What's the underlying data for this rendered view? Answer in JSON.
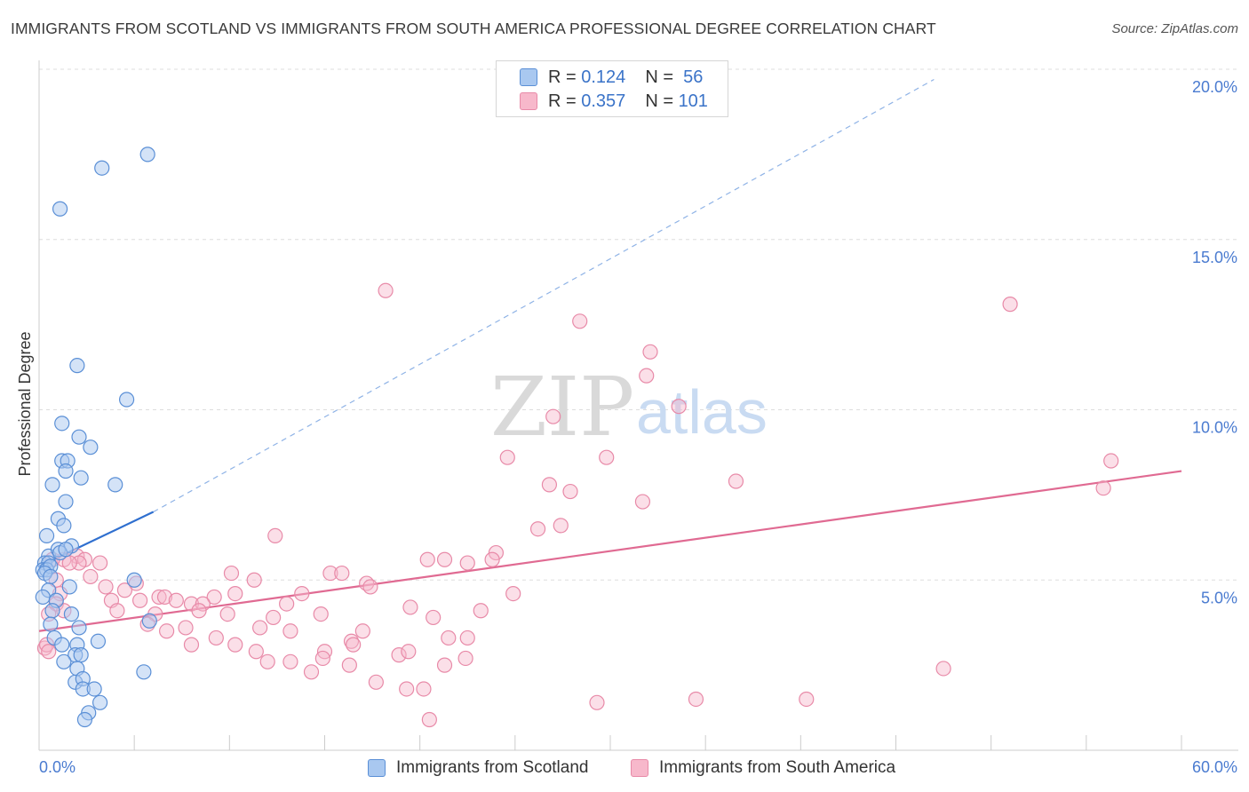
{
  "title": "IMMIGRANTS FROM SCOTLAND VS IMMIGRANTS FROM SOUTH AMERICA PROFESSIONAL DEGREE CORRELATION CHART",
  "source": "Source: ZipAtlas.com",
  "watermark": {
    "zip": "ZIP",
    "atlas": "atlas"
  },
  "legend": {
    "r_label": "R =",
    "n_label": "N =",
    "rows": [
      {
        "r": "0.124",
        "n": "56"
      },
      {
        "r": "0.357",
        "n": "101"
      }
    ]
  },
  "bottom_legend": [
    "Immigrants from Scotland",
    "Immigrants from South America"
  ],
  "colors": {
    "scotland_fill": "#a9c8f0",
    "scotland_stroke": "#5a8fd6",
    "scotland_line": "#2f6fcf",
    "southam_fill": "#f7b8cb",
    "southam_stroke": "#e88aa8",
    "southam_line": "#e06a92",
    "tick_text": "#4a7bd0",
    "grid": "#dddddd"
  },
  "chart_data": {
    "type": "scatter",
    "title": "IMMIGRANTS FROM SCOTLAND VS IMMIGRANTS FROM SOUTH AMERICA PROFESSIONAL DEGREE CORRELATION CHART",
    "xlabel": "",
    "ylabel": "Professional Degree",
    "xlim": [
      0,
      60
    ],
    "ylim": [
      0,
      20
    ],
    "x_tick_labels": [
      "0.0%",
      "60.0%"
    ],
    "y_ticks": [
      5,
      10,
      15,
      20
    ],
    "y_tick_labels": [
      "5.0%",
      "10.0%",
      "15.0%",
      "20.0%"
    ],
    "grid": "horizontal dashed",
    "legend_placement": "top-center",
    "series": [
      {
        "name": "Immigrants from Scotland",
        "r": 0.124,
        "n": 56,
        "trend": {
          "x0": 0.0,
          "y0": 5.4,
          "x1": 6.0,
          "y1": 7.0,
          "dashed_to_x": 47.0,
          "dashed_to_y": 19.7
        },
        "points": [
          [
            3.3,
            17.1
          ],
          [
            5.7,
            17.5
          ],
          [
            1.1,
            15.9
          ],
          [
            2.0,
            11.3
          ],
          [
            4.6,
            10.3
          ],
          [
            1.2,
            9.6
          ],
          [
            2.1,
            9.2
          ],
          [
            2.7,
            8.9
          ],
          [
            1.2,
            8.5
          ],
          [
            1.5,
            8.5
          ],
          [
            2.2,
            8.0
          ],
          [
            0.7,
            7.8
          ],
          [
            4.0,
            7.8
          ],
          [
            1.4,
            8.2
          ],
          [
            1.4,
            7.3
          ],
          [
            1.0,
            6.8
          ],
          [
            1.3,
            6.6
          ],
          [
            0.4,
            6.3
          ],
          [
            1.7,
            6.0
          ],
          [
            0.5,
            5.7
          ],
          [
            1.0,
            5.9
          ],
          [
            1.1,
            5.8
          ],
          [
            1.4,
            5.9
          ],
          [
            0.3,
            5.5
          ],
          [
            0.5,
            5.5
          ],
          [
            0.2,
            5.3
          ],
          [
            0.4,
            5.3
          ],
          [
            0.6,
            5.4
          ],
          [
            0.3,
            5.2
          ],
          [
            0.6,
            5.1
          ],
          [
            5.0,
            5.0
          ],
          [
            1.6,
            4.8
          ],
          [
            0.5,
            4.7
          ],
          [
            0.2,
            4.5
          ],
          [
            0.9,
            4.4
          ],
          [
            0.7,
            4.1
          ],
          [
            1.7,
            4.0
          ],
          [
            0.6,
            3.7
          ],
          [
            2.1,
            3.6
          ],
          [
            5.8,
            3.8
          ],
          [
            0.8,
            3.3
          ],
          [
            1.2,
            3.1
          ],
          [
            2.0,
            3.1
          ],
          [
            3.1,
            3.2
          ],
          [
            1.9,
            2.8
          ],
          [
            2.2,
            2.8
          ],
          [
            1.3,
            2.6
          ],
          [
            2.0,
            2.4
          ],
          [
            1.9,
            2.0
          ],
          [
            2.3,
            2.1
          ],
          [
            2.3,
            1.8
          ],
          [
            2.9,
            1.8
          ],
          [
            3.2,
            1.4
          ],
          [
            2.6,
            1.1
          ],
          [
            2.4,
            0.9
          ],
          [
            5.5,
            2.3
          ]
        ]
      },
      {
        "name": "Immigrants from South America",
        "r": 0.357,
        "n": 101,
        "trend": {
          "x0": 0.0,
          "y0": 3.5,
          "x1": 60.0,
          "y1": 8.2
        },
        "points": [
          [
            18.2,
            13.5
          ],
          [
            51.0,
            13.1
          ],
          [
            28.4,
            12.6
          ],
          [
            32.1,
            11.7
          ],
          [
            31.9,
            11.0
          ],
          [
            33.6,
            10.1
          ],
          [
            27.0,
            9.8
          ],
          [
            24.6,
            8.6
          ],
          [
            29.8,
            8.6
          ],
          [
            56.3,
            8.5
          ],
          [
            36.6,
            7.9
          ],
          [
            26.8,
            7.8
          ],
          [
            55.9,
            7.7
          ],
          [
            27.9,
            7.6
          ],
          [
            31.7,
            7.3
          ],
          [
            26.2,
            6.5
          ],
          [
            27.4,
            6.6
          ],
          [
            12.4,
            6.3
          ],
          [
            24.0,
            5.8
          ],
          [
            23.8,
            5.6
          ],
          [
            20.4,
            5.6
          ],
          [
            21.3,
            5.6
          ],
          [
            22.5,
            5.5
          ],
          [
            2.0,
            5.7
          ],
          [
            2.4,
            5.6
          ],
          [
            3.2,
            5.5
          ],
          [
            1.3,
            5.6
          ],
          [
            2.1,
            5.5
          ],
          [
            1.6,
            5.5
          ],
          [
            0.7,
            5.6
          ],
          [
            10.1,
            5.2
          ],
          [
            15.3,
            5.2
          ],
          [
            15.9,
            5.2
          ],
          [
            11.3,
            5.0
          ],
          [
            2.7,
            5.1
          ],
          [
            0.9,
            5.0
          ],
          [
            5.1,
            4.9
          ],
          [
            17.2,
            4.9
          ],
          [
            17.4,
            4.8
          ],
          [
            24.9,
            4.6
          ],
          [
            3.5,
            4.8
          ],
          [
            4.5,
            4.7
          ],
          [
            10.3,
            4.6
          ],
          [
            13.8,
            4.6
          ],
          [
            6.3,
            4.5
          ],
          [
            6.6,
            4.5
          ],
          [
            7.2,
            4.4
          ],
          [
            9.2,
            4.5
          ],
          [
            8.0,
            4.3
          ],
          [
            8.6,
            4.3
          ],
          [
            3.8,
            4.4
          ],
          [
            5.3,
            4.4
          ],
          [
            1.1,
            4.6
          ],
          [
            0.9,
            4.3
          ],
          [
            13.0,
            4.3
          ],
          [
            19.5,
            4.2
          ],
          [
            23.2,
            4.1
          ],
          [
            4.1,
            4.1
          ],
          [
            6.1,
            4.0
          ],
          [
            8.4,
            4.1
          ],
          [
            9.9,
            4.0
          ],
          [
            14.8,
            4.0
          ],
          [
            20.7,
            3.9
          ],
          [
            12.3,
            3.9
          ],
          [
            0.5,
            4.0
          ],
          [
            1.3,
            4.1
          ],
          [
            6.7,
            3.5
          ],
          [
            5.7,
            3.7
          ],
          [
            7.7,
            3.6
          ],
          [
            11.6,
            3.6
          ],
          [
            13.2,
            3.5
          ],
          [
            17.0,
            3.5
          ],
          [
            22.5,
            3.3
          ],
          [
            21.5,
            3.3
          ],
          [
            16.4,
            3.2
          ],
          [
            16.5,
            3.1
          ],
          [
            8.0,
            3.1
          ],
          [
            10.3,
            3.1
          ],
          [
            11.4,
            2.9
          ],
          [
            9.3,
            3.3
          ],
          [
            15.0,
            2.9
          ],
          [
            14.9,
            2.7
          ],
          [
            18.9,
            2.8
          ],
          [
            19.4,
            2.9
          ],
          [
            12.0,
            2.6
          ],
          [
            13.2,
            2.6
          ],
          [
            16.3,
            2.5
          ],
          [
            21.3,
            2.5
          ],
          [
            22.4,
            2.7
          ],
          [
            14.3,
            2.3
          ],
          [
            17.7,
            2.0
          ],
          [
            20.2,
            1.8
          ],
          [
            19.3,
            1.8
          ],
          [
            29.3,
            1.4
          ],
          [
            34.5,
            1.5
          ],
          [
            40.3,
            1.5
          ],
          [
            47.5,
            2.4
          ],
          [
            20.5,
            0.9
          ],
          [
            0.3,
            3.0
          ],
          [
            0.4,
            3.1
          ],
          [
            0.5,
            2.9
          ]
        ]
      }
    ]
  }
}
